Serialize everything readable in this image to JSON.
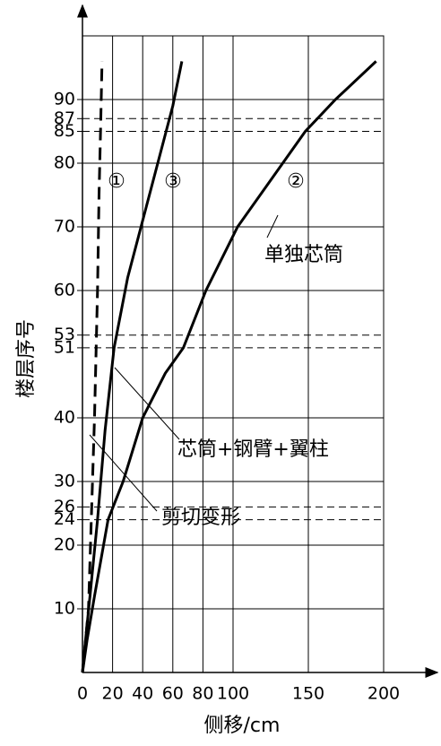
{
  "chart_data": {
    "type": "line",
    "x_label": "侧移/cm",
    "y_label": "楼层序号",
    "xlim": [
      0,
      200
    ],
    "ylim": [
      0,
      100
    ],
    "xticks": [
      0,
      20,
      40,
      60,
      80,
      100,
      150,
      200
    ],
    "yticks": [
      10,
      20,
      24,
      26,
      30,
      40,
      51,
      53,
      60,
      70,
      80,
      85,
      87,
      90
    ],
    "grid": true,
    "series": [
      {
        "name": "①",
        "color": "#000000",
        "dash": "dashed",
        "x": [
          0,
          2,
          4,
          6,
          8,
          10,
          11,
          12,
          13
        ],
        "values": [
          0,
          5,
          10,
          25,
          40,
          60,
          75,
          85,
          96
        ]
      },
      {
        "name": "②",
        "color": "#000000",
        "dash": "solid",
        "x": [
          0,
          3,
          8,
          17,
          27,
          40,
          55,
          67,
          82,
          103,
          133,
          148,
          168,
          195
        ],
        "values": [
          0,
          5,
          12,
          24,
          30,
          40,
          47,
          51,
          60,
          70,
          80,
          85,
          90,
          96
        ]
      },
      {
        "name": "③",
        "color": "#000000",
        "dash": "solid",
        "x": [
          0,
          2,
          5,
          10,
          15,
          21,
          30,
          40,
          50,
          60,
          66
        ],
        "values": [
          0,
          5,
          12,
          24,
          38,
          51,
          62,
          71,
          80,
          89,
          96
        ]
      }
    ],
    "annotations": [
      "单独芯筒",
      "芯筒+钢臂+翼柱",
      "剪切变形"
    ]
  }
}
